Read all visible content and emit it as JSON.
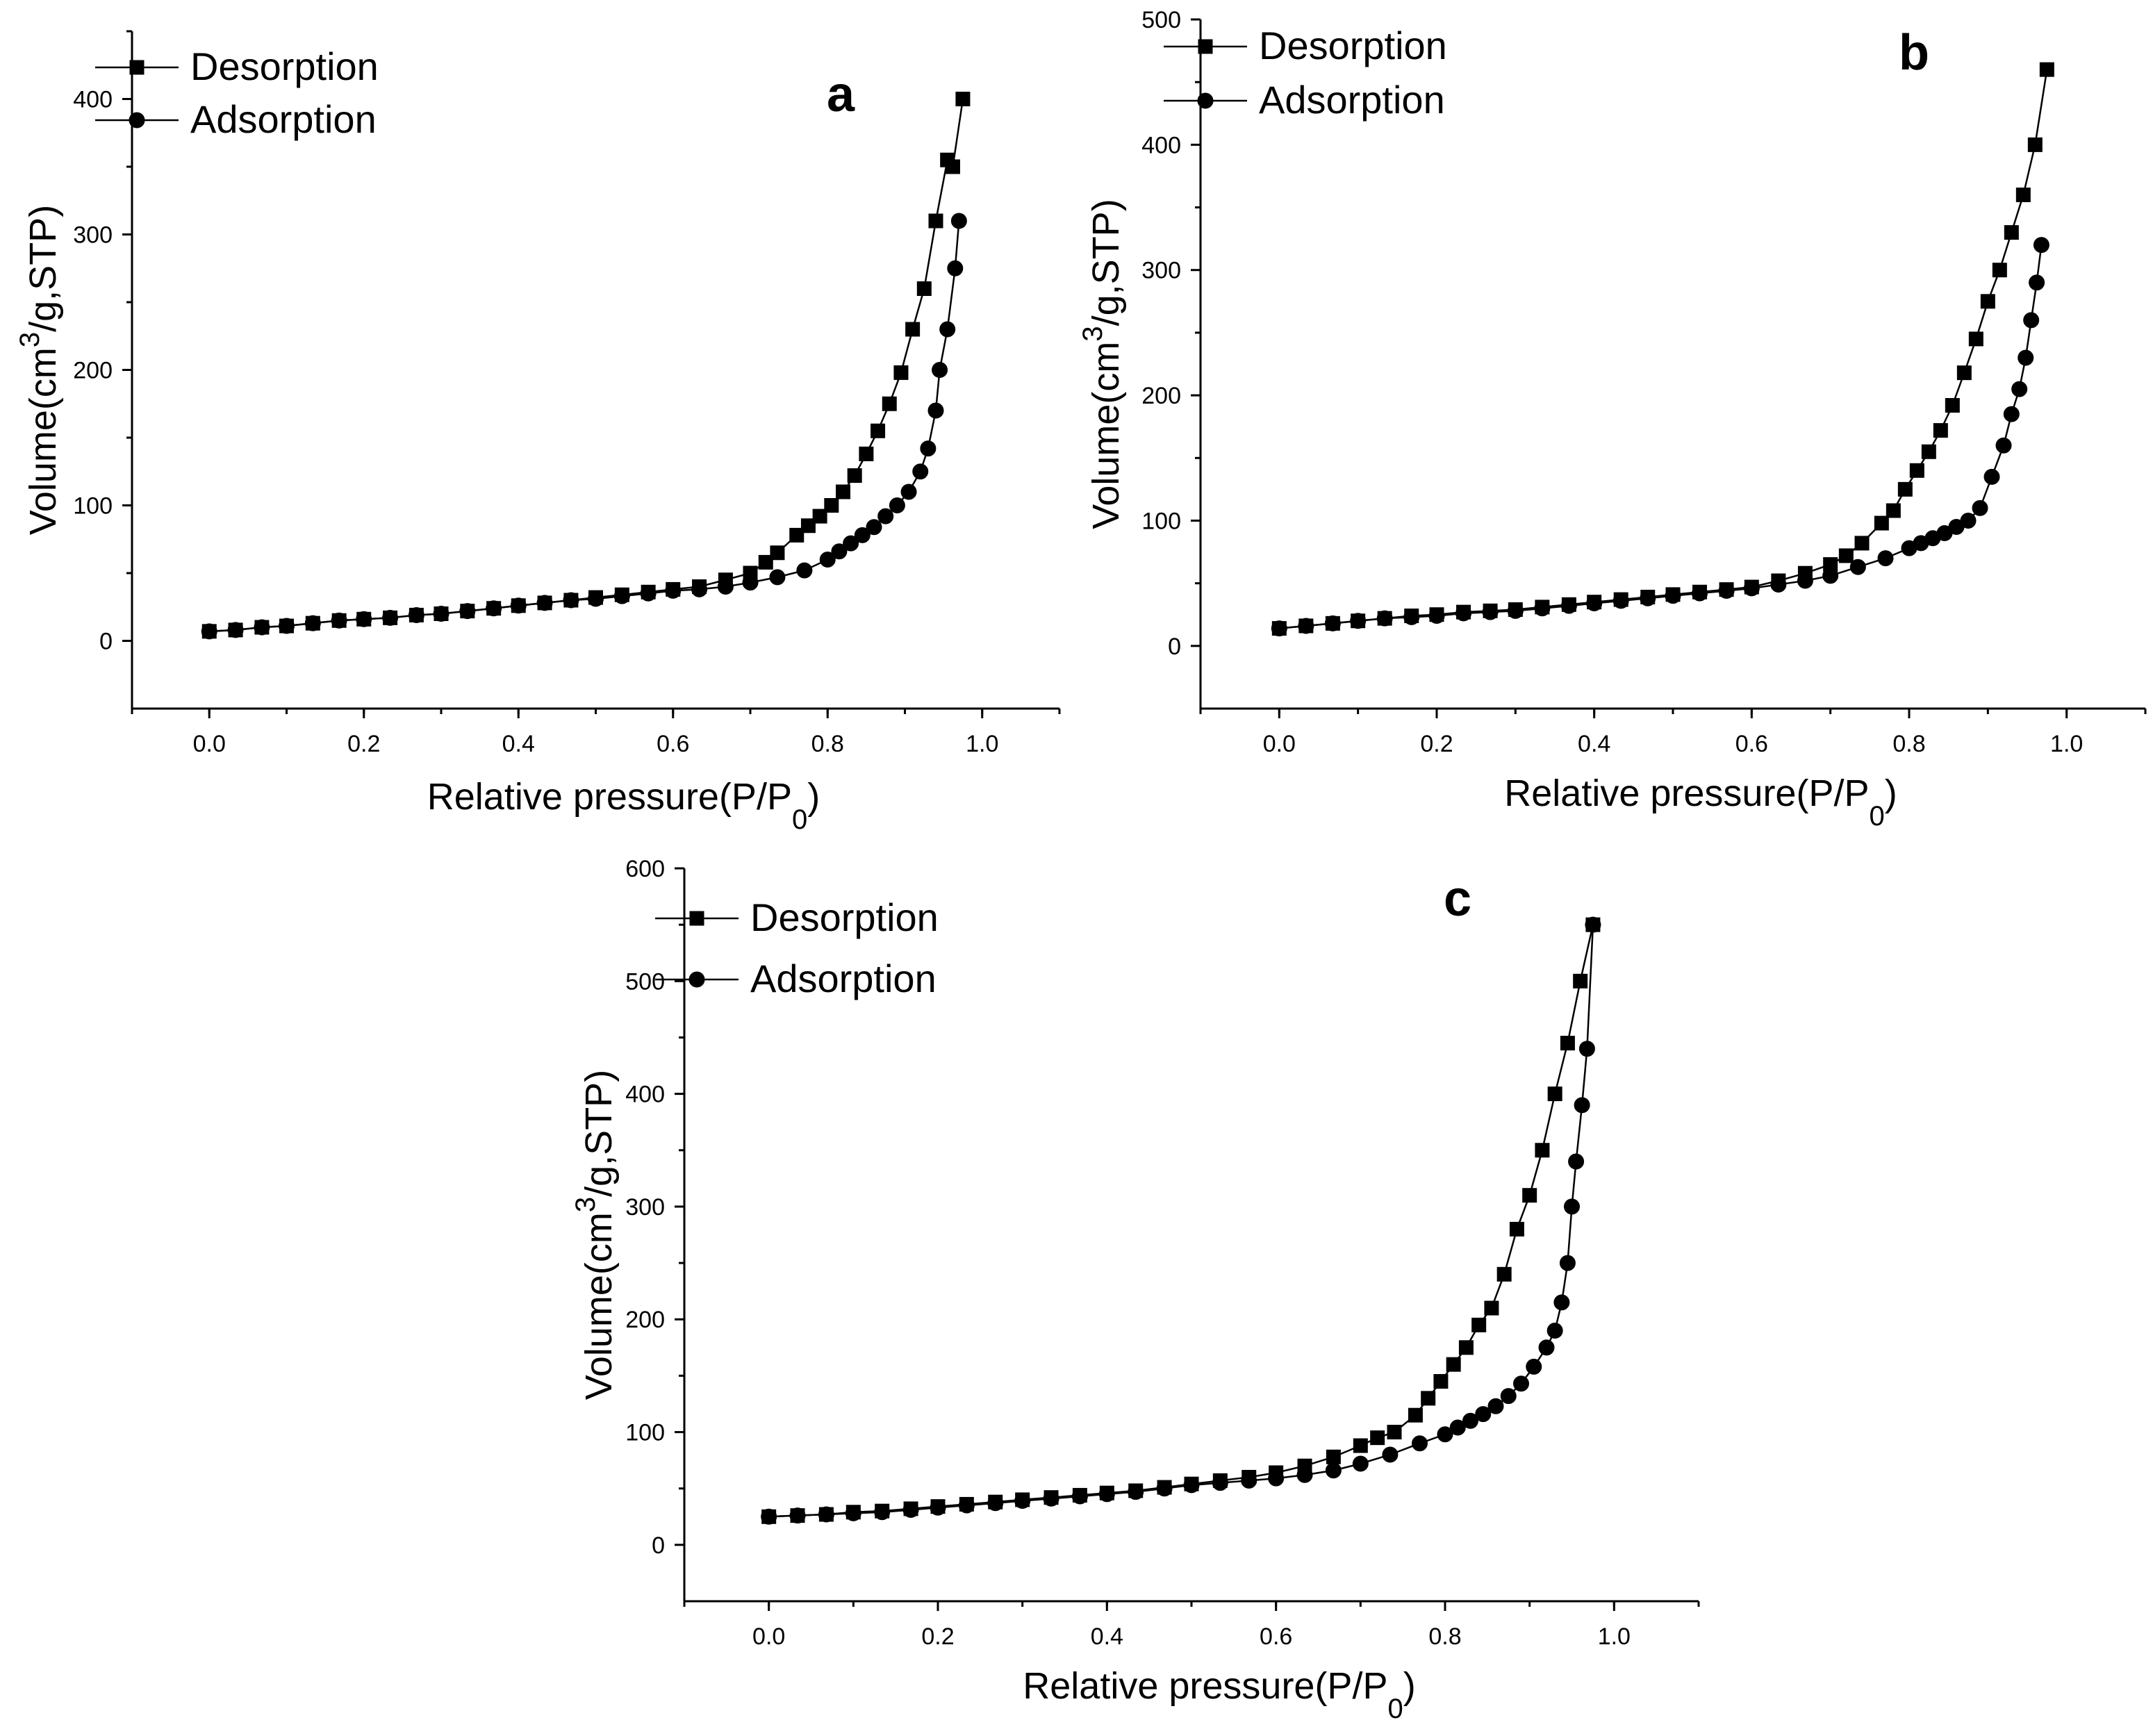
{
  "chart_data": [
    {
      "panel": "a",
      "type": "line",
      "xlabel": "Relative pressure(P/P",
      "xlabel_sub": "0",
      "xlabel_end": ")",
      "ylabel": "Volume(cm",
      "ylabel_sup": "3",
      "ylabel_end": "/g,STP)",
      "xlim": [
        -0.1,
        1.1
      ],
      "ylim": [
        -50,
        450
      ],
      "xticks": [
        0.0,
        0.2,
        0.4,
        0.6,
        0.8,
        1.0
      ],
      "xtick_labels": [
        "0.0",
        "0.2",
        "0.4",
        "0.6",
        "0.8",
        "1.0"
      ],
      "yticks": [
        0,
        100,
        200,
        300,
        400
      ],
      "ytick_labels": [
        "0",
        "100",
        "200",
        "300",
        "400"
      ],
      "legend_position": "top-left",
      "series": [
        {
          "name": "Desorption",
          "marker": "square",
          "x": [
            0.0,
            0.034,
            0.068,
            0.1,
            0.134,
            0.168,
            0.2,
            0.234,
            0.268,
            0.3,
            0.334,
            0.368,
            0.4,
            0.434,
            0.468,
            0.5,
            0.534,
            0.568,
            0.6,
            0.634,
            0.668,
            0.7,
            0.72,
            0.735,
            0.76,
            0.775,
            0.79,
            0.805,
            0.82,
            0.835,
            0.85,
            0.865,
            0.88,
            0.895,
            0.91,
            0.925,
            0.94,
            0.955,
            0.962,
            0.975
          ],
          "y": [
            7,
            8,
            10,
            11,
            13,
            15,
            16,
            17,
            19,
            20,
            22,
            24,
            26,
            28,
            30,
            32,
            34,
            36,
            38,
            40,
            45,
            50,
            58,
            65,
            78,
            85,
            92,
            100,
            110,
            122,
            138,
            155,
            175,
            198,
            230,
            260,
            310,
            355,
            350,
            400
          ]
        },
        {
          "name": "Adsorption",
          "marker": "circle",
          "x": [
            0.0,
            0.034,
            0.068,
            0.1,
            0.134,
            0.168,
            0.2,
            0.234,
            0.268,
            0.3,
            0.334,
            0.368,
            0.4,
            0.434,
            0.468,
            0.5,
            0.534,
            0.568,
            0.6,
            0.634,
            0.668,
            0.7,
            0.735,
            0.77,
            0.8,
            0.815,
            0.83,
            0.845,
            0.86,
            0.875,
            0.89,
            0.905,
            0.92,
            0.93,
            0.94,
            0.945,
            0.955,
            0.965,
            0.97
          ],
          "y": [
            7,
            8,
            10,
            11,
            13,
            15,
            16,
            17,
            19,
            20,
            22,
            24,
            26,
            28,
            30,
            31,
            33,
            35,
            37,
            38,
            40,
            43,
            47,
            52,
            60,
            66,
            72,
            78,
            84,
            92,
            100,
            110,
            125,
            142,
            170,
            200,
            230,
            275,
            310
          ]
        }
      ]
    },
    {
      "panel": "b",
      "type": "line",
      "xlabel": "Relative pressure(P/P",
      "xlabel_sub": "0",
      "xlabel_end": ")",
      "ylabel": "Volume(cm",
      "ylabel_sup": "3",
      "ylabel_end": "/g,STP)",
      "xlim": [
        -0.1,
        1.1
      ],
      "ylim": [
        -50,
        500
      ],
      "xticks": [
        0.0,
        0.2,
        0.4,
        0.6,
        0.8,
        1.0
      ],
      "xtick_labels": [
        "0.0",
        "0.2",
        "0.4",
        "0.6",
        "0.8",
        "1.0"
      ],
      "yticks": [
        0,
        100,
        200,
        300,
        400,
        500
      ],
      "ytick_labels": [
        "0",
        "100",
        "200",
        "300",
        "400",
        "500"
      ],
      "legend_position": "top-left",
      "series": [
        {
          "name": "Desorption",
          "marker": "square",
          "x": [
            0.0,
            0.034,
            0.068,
            0.1,
            0.134,
            0.168,
            0.2,
            0.234,
            0.268,
            0.3,
            0.334,
            0.368,
            0.4,
            0.434,
            0.468,
            0.5,
            0.534,
            0.568,
            0.6,
            0.634,
            0.668,
            0.7,
            0.72,
            0.74,
            0.765,
            0.78,
            0.795,
            0.81,
            0.825,
            0.84,
            0.855,
            0.87,
            0.885,
            0.9,
            0.915,
            0.93,
            0.945,
            0.96,
            0.975
          ],
          "y": [
            14,
            16,
            18,
            20,
            22,
            24,
            25,
            27,
            28,
            29,
            31,
            33,
            35,
            37,
            39,
            41,
            43,
            45,
            47,
            52,
            58,
            65,
            72,
            82,
            98,
            108,
            125,
            140,
            155,
            172,
            192,
            218,
            245,
            275,
            300,
            330,
            360,
            400,
            460
          ]
        },
        {
          "name": "Adsorption",
          "marker": "circle",
          "x": [
            0.0,
            0.034,
            0.068,
            0.1,
            0.134,
            0.168,
            0.2,
            0.234,
            0.268,
            0.3,
            0.334,
            0.368,
            0.4,
            0.434,
            0.468,
            0.5,
            0.534,
            0.568,
            0.6,
            0.634,
            0.668,
            0.7,
            0.735,
            0.77,
            0.8,
            0.815,
            0.83,
            0.845,
            0.86,
            0.875,
            0.89,
            0.905,
            0.92,
            0.93,
            0.94,
            0.948,
            0.955,
            0.962,
            0.968
          ],
          "y": [
            14,
            16,
            18,
            20,
            22,
            23,
            24,
            26,
            27,
            28,
            30,
            32,
            34,
            36,
            38,
            40,
            42,
            44,
            46,
            49,
            52,
            56,
            63,
            70,
            78,
            82,
            86,
            90,
            95,
            100,
            110,
            135,
            160,
            185,
            205,
            230,
            260,
            290,
            320
          ]
        }
      ]
    },
    {
      "panel": "c",
      "type": "line",
      "xlabel": "Relative pressure(P/P",
      "xlabel_sub": "0",
      "xlabel_end": ")",
      "ylabel": "Volume(cm",
      "ylabel_sup": "3",
      "ylabel_end": "/g,STP)",
      "xlim": [
        -0.1,
        1.1
      ],
      "ylim": [
        -50,
        600
      ],
      "xticks": [
        0.0,
        0.2,
        0.4,
        0.6,
        0.8,
        1.0
      ],
      "xtick_labels": [
        "0.0",
        "0.2",
        "0.4",
        "0.6",
        "0.8",
        "1.0"
      ],
      "yticks": [
        0,
        100,
        200,
        300,
        400,
        500,
        600
      ],
      "ytick_labels": [
        "0",
        "100",
        "200",
        "300",
        "400",
        "500",
        "600"
      ],
      "legend_position": "top-left",
      "series": [
        {
          "name": "Desorption",
          "marker": "square",
          "x": [
            0.0,
            0.034,
            0.068,
            0.1,
            0.134,
            0.168,
            0.2,
            0.234,
            0.268,
            0.3,
            0.334,
            0.368,
            0.4,
            0.434,
            0.468,
            0.5,
            0.534,
            0.568,
            0.6,
            0.634,
            0.668,
            0.7,
            0.72,
            0.74,
            0.765,
            0.78,
            0.795,
            0.81,
            0.825,
            0.84,
            0.855,
            0.87,
            0.885,
            0.9,
            0.915,
            0.93,
            0.945,
            0.96,
            0.975
          ],
          "y": [
            25,
            26,
            27,
            29,
            30,
            32,
            34,
            36,
            38,
            40,
            42,
            44,
            46,
            48,
            51,
            54,
            57,
            60,
            64,
            70,
            78,
            88,
            95,
            100,
            115,
            130,
            145,
            160,
            175,
            195,
            210,
            240,
            280,
            310,
            350,
            400,
            445,
            500,
            550
          ]
        },
        {
          "name": "Adsorption",
          "marker": "circle",
          "x": [
            0.0,
            0.034,
            0.068,
            0.1,
            0.134,
            0.168,
            0.2,
            0.234,
            0.268,
            0.3,
            0.334,
            0.368,
            0.4,
            0.434,
            0.468,
            0.5,
            0.534,
            0.568,
            0.6,
            0.634,
            0.668,
            0.7,
            0.735,
            0.77,
            0.8,
            0.815,
            0.83,
            0.845,
            0.86,
            0.875,
            0.89,
            0.905,
            0.92,
            0.93,
            0.938,
            0.945,
            0.95,
            0.955,
            0.962,
            0.968,
            0.975
          ],
          "y": [
            25,
            26,
            27,
            28,
            29,
            31,
            33,
            35,
            37,
            39,
            41,
            43,
            45,
            47,
            50,
            53,
            55,
            57,
            59,
            62,
            66,
            72,
            80,
            90,
            98,
            104,
            110,
            116,
            123,
            132,
            143,
            158,
            175,
            190,
            215,
            250,
            300,
            340,
            390,
            440,
            550
          ]
        }
      ]
    }
  ]
}
